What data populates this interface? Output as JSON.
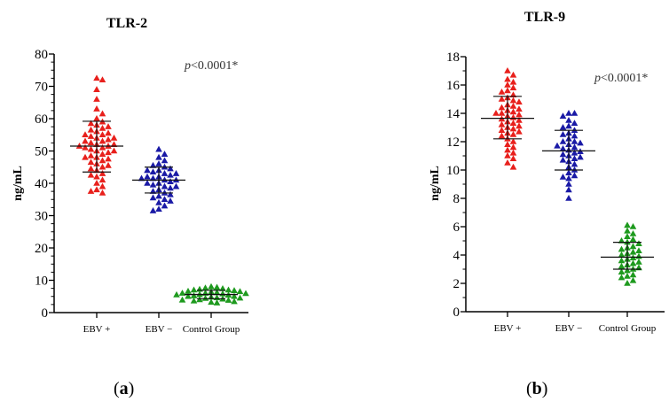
{
  "chart_data": [
    {
      "type": "scatter",
      "title": "TLR-2",
      "ylabel": "ng/mL",
      "ylim": [
        0,
        80
      ],
      "yticks": [
        0,
        10,
        20,
        30,
        40,
        50,
        60,
        70,
        80
      ],
      "categories": [
        "EBV +",
        "EBV −",
        "Control Group"
      ],
      "annotation_prefix": "p",
      "annotation_rest": "<0.0001*",
      "panel_label": "(a)",
      "series": [
        {
          "color": "#e8201c",
          "mean": 51.5,
          "sd_low": 43.5,
          "sd_high": 59.2,
          "values": [
            72.5,
            72,
            69,
            66,
            63,
            61.5,
            60,
            59,
            58.5,
            58,
            57.5,
            57,
            56.5,
            56,
            55.5,
            55,
            55,
            54.5,
            54,
            54,
            53.5,
            53,
            53,
            52.5,
            52,
            52,
            51.5,
            51.5,
            51,
            51,
            50.5,
            50,
            50,
            49.5,
            49,
            48.5,
            48,
            48,
            47.5,
            47,
            46.5,
            46,
            45.5,
            45,
            44.5,
            44,
            43,
            42.5,
            42,
            41,
            40,
            39,
            38,
            37.5,
            37
          ]
        },
        {
          "color": "#1a1aa6",
          "mean": 41.0,
          "sd_low": 37.0,
          "sd_high": 45.0,
          "values": [
            50.5,
            49,
            48,
            47,
            46,
            45.5,
            45,
            44.5,
            44,
            44,
            43.5,
            43,
            43,
            42.5,
            42,
            42,
            41.5,
            41.5,
            41,
            41,
            40.5,
            40,
            40,
            39.5,
            39,
            39,
            38.5,
            38,
            37.5,
            37,
            36.5,
            36,
            35.5,
            35,
            34.5,
            34,
            33,
            32,
            31.5
          ]
        },
        {
          "color": "#1e9a1e",
          "mean": 5.6,
          "sd_low": 4.3,
          "sd_high": 6.9,
          "values": [
            8,
            7.8,
            7.6,
            7.4,
            7.2,
            7,
            7,
            6.8,
            6.6,
            6.5,
            6.4,
            6.2,
            6,
            6,
            5.9,
            5.8,
            5.6,
            5.5,
            5.4,
            5.2,
            5,
            5,
            4.8,
            4.6,
            4.5,
            4.4,
            4.2,
            4,
            3.9,
            3.8,
            3.6,
            3.4,
            3.2,
            3
          ]
        }
      ]
    },
    {
      "type": "scatter",
      "title": "TLR-9",
      "ylabel": "ng/mL",
      "ylim": [
        0,
        18
      ],
      "yticks": [
        0,
        2,
        4,
        6,
        8,
        10,
        12,
        14,
        16,
        18
      ],
      "categories": [
        "EBV +",
        "EBV −",
        "Control Group"
      ],
      "annotation_prefix": "p",
      "annotation_rest": "<0.0001*",
      "panel_label": "(b)",
      "series": [
        {
          "color": "#e8201c",
          "mean": 13.65,
          "sd_low": 12.2,
          "sd_high": 15.2,
          "values": [
            17,
            16.7,
            16.4,
            16.2,
            16,
            15.8,
            15.6,
            15.5,
            15.3,
            15.1,
            15,
            14.9,
            14.8,
            14.6,
            14.5,
            14.4,
            14.3,
            14.2,
            14.1,
            14,
            14,
            13.9,
            13.8,
            13.7,
            13.6,
            13.5,
            13.4,
            13.3,
            13.2,
            13.1,
            13,
            12.9,
            12.8,
            12.7,
            12.6,
            12.5,
            12.4,
            12.2,
            12,
            11.8,
            11.6,
            11.4,
            11.2,
            11,
            10.8,
            10.5,
            10.2
          ]
        },
        {
          "color": "#1a1aa6",
          "mean": 11.35,
          "sd_low": 10.0,
          "sd_high": 12.8,
          "values": [
            14,
            14,
            13.8,
            13.5,
            13.3,
            13.1,
            13,
            12.8,
            12.6,
            12.5,
            12.4,
            12.2,
            12,
            12,
            11.9,
            11.8,
            11.7,
            11.6,
            11.5,
            11.4,
            11.3,
            11.2,
            11.1,
            11,
            10.9,
            10.8,
            10.7,
            10.6,
            10.4,
            10.2,
            10,
            9.8,
            9.6,
            9.5,
            9.4,
            9,
            8.6,
            8
          ]
        },
        {
          "color": "#1e9a1e",
          "mean": 3.85,
          "sd_low": 3.0,
          "sd_high": 4.9,
          "values": [
            6.1,
            6,
            5.7,
            5.5,
            5.3,
            5.1,
            5,
            4.9,
            4.8,
            4.6,
            4.5,
            4.4,
            4.3,
            4.2,
            4.1,
            4,
            3.9,
            3.8,
            3.7,
            3.6,
            3.5,
            3.4,
            3.3,
            3.2,
            3.1,
            3,
            2.9,
            2.8,
            2.6,
            2.5,
            2.4,
            2.2,
            2
          ]
        }
      ]
    }
  ]
}
